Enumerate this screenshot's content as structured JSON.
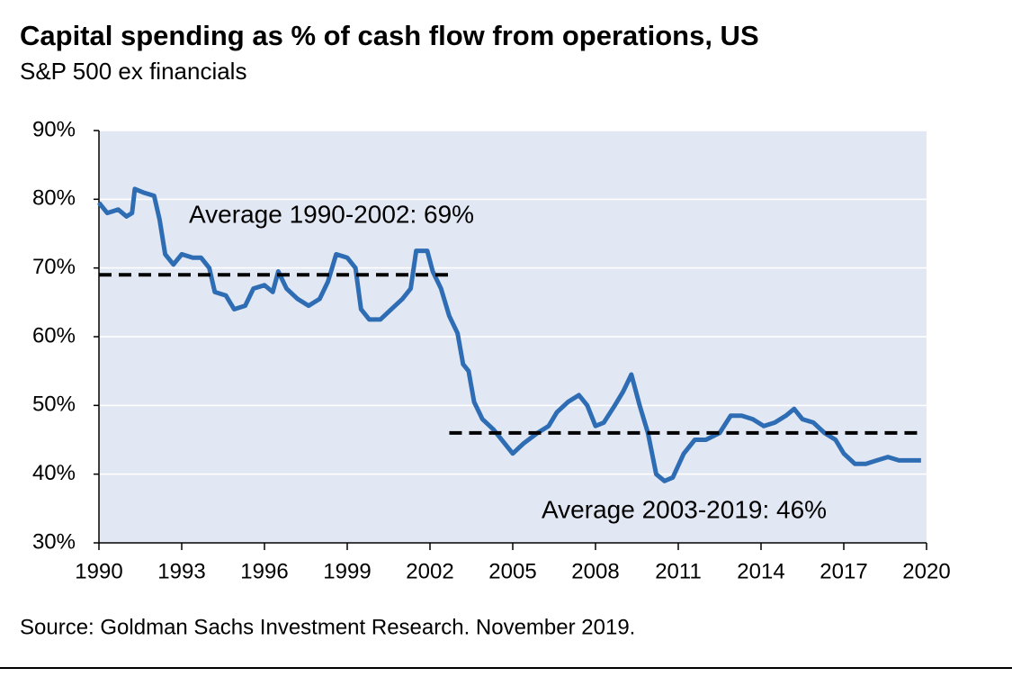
{
  "chart_data": {
    "type": "line",
    "title": "Capital spending as % of cash flow from operations, US",
    "subtitle": "S&P 500 ex financials",
    "source": "Source: Goldman Sachs Investment Research. November 2019.",
    "xlim": [
      1990,
      2020
    ],
    "xticks": [
      1990,
      1993,
      1996,
      1999,
      2002,
      2005,
      2008,
      2011,
      2014,
      2017,
      2020
    ],
    "ylim": [
      30,
      90
    ],
    "yticks": [
      {
        "value": 30,
        "label": "30%"
      },
      {
        "value": 40,
        "label": "40%"
      },
      {
        "value": 50,
        "label": "50%"
      },
      {
        "value": 60,
        "label": "60%"
      },
      {
        "value": 70,
        "label": "70%"
      },
      {
        "value": 80,
        "label": "80%"
      },
      {
        "value": 90,
        "label": "90%"
      }
    ],
    "grid": true,
    "series": [
      {
        "color": "#2e6db4",
        "x": [
          1990.0,
          1990.3,
          1990.7,
          1991.0,
          1991.2,
          1991.3,
          1991.6,
          1992.0,
          1992.2,
          1992.4,
          1992.7,
          1993.0,
          1993.4,
          1993.7,
          1994.0,
          1994.2,
          1994.6,
          1994.9,
          1995.3,
          1995.6,
          1996.0,
          1996.3,
          1996.5,
          1996.8,
          1997.2,
          1997.6,
          1998.0,
          1998.3,
          1998.6,
          1999.0,
          1999.3,
          1999.5,
          1999.8,
          2000.2,
          2000.6,
          2001.0,
          2001.3,
          2001.5,
          2001.9,
          2002.1,
          2002.4,
          2002.7,
          2003.0,
          2003.2,
          2003.4,
          2003.6,
          2003.9,
          2004.3,
          2004.7,
          2005.0,
          2005.4,
          2005.9,
          2006.3,
          2006.6,
          2007.0,
          2007.4,
          2007.7,
          2008.0,
          2008.3,
          2008.7,
          2009.0,
          2009.3,
          2009.6,
          2009.9,
          2010.2,
          2010.5,
          2010.8,
          2011.2,
          2011.6,
          2012.0,
          2012.5,
          2012.9,
          2013.3,
          2013.7,
          2014.1,
          2014.5,
          2014.9,
          2015.2,
          2015.5,
          2015.9,
          2016.3,
          2016.7,
          2017.0,
          2017.4,
          2017.8,
          2018.2,
          2018.6,
          2019.0,
          2019.4,
          2019.8
        ],
        "values": [
          79.5,
          78,
          78.5,
          77.5,
          78,
          81.5,
          81,
          80.5,
          77,
          72,
          70.5,
          72,
          71.5,
          71.5,
          70,
          66.5,
          66,
          64,
          64.5,
          67,
          67.5,
          66.5,
          69.5,
          67,
          65.5,
          64.5,
          65.5,
          68,
          72,
          71.5,
          70,
          64,
          62.5,
          62.5,
          64,
          65.5,
          67,
          72.5,
          72.5,
          69.5,
          67,
          63,
          60.5,
          56,
          55,
          50.5,
          48,
          46.5,
          44.5,
          43,
          44.5,
          46,
          47,
          49,
          50.5,
          51.5,
          50,
          47,
          47.5,
          50,
          52,
          54.5,
          50,
          46,
          40,
          39,
          39.5,
          43,
          45,
          45,
          46,
          48.5,
          48.5,
          48,
          47,
          47.5,
          48.5,
          49.5,
          48,
          47.5,
          46,
          45,
          43,
          41.5,
          41.5,
          42,
          42.5,
          42,
          42,
          42
        ]
      }
    ],
    "averages": [
      {
        "label": "Average 1990-2002: 69%",
        "value": 69,
        "x": [
          1990,
          2002.7
        ]
      },
      {
        "label": "Average 2003-2019: 46%",
        "value": 46,
        "x": [
          2002.7,
          2019.7
        ]
      }
    ]
  }
}
